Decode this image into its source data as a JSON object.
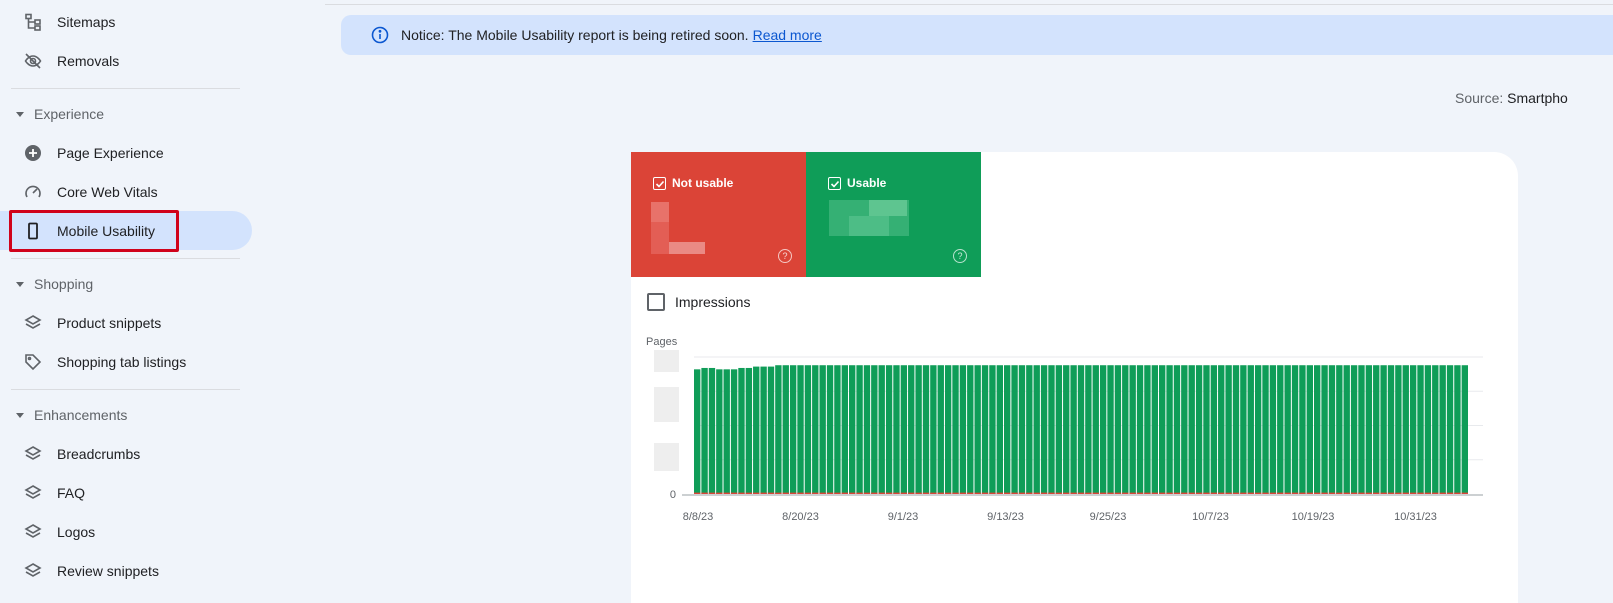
{
  "sidebar": {
    "top_items": [
      {
        "label": "Sitemaps",
        "icon": "sitemap-icon"
      },
      {
        "label": "Removals",
        "icon": "eye-off-icon"
      }
    ],
    "sections": [
      {
        "label": "Experience",
        "items": [
          {
            "label": "Page Experience",
            "icon": "add-circle-icon"
          },
          {
            "label": "Core Web Vitals",
            "icon": "speedometer-icon"
          },
          {
            "label": "Mobile Usability",
            "icon": "smartphone-icon",
            "active": true
          }
        ]
      },
      {
        "label": "Shopping",
        "items": [
          {
            "label": "Product snippets",
            "icon": "layers-icon"
          },
          {
            "label": "Shopping tab listings",
            "icon": "tag-icon"
          }
        ]
      },
      {
        "label": "Enhancements",
        "items": [
          {
            "label": "Breadcrumbs",
            "icon": "layers-icon"
          },
          {
            "label": "FAQ",
            "icon": "layers-icon"
          },
          {
            "label": "Logos",
            "icon": "layers-icon"
          },
          {
            "label": "Review snippets",
            "icon": "layers-icon"
          }
        ]
      }
    ]
  },
  "notice": {
    "text": "Notice: The Mobile Usability report is being retired soon.",
    "link": "Read more"
  },
  "source": {
    "label": "Source:",
    "value": "Smartpho"
  },
  "tiles": {
    "not_usable": {
      "label": "Not usable",
      "help": "?"
    },
    "usable": {
      "label": "Usable",
      "help": "?"
    }
  },
  "impressions_label": "Impressions",
  "colors": {
    "not_usable": "#db4437",
    "usable": "#0f9d58",
    "accent": "#0b57d0"
  },
  "chart_data": {
    "type": "bar",
    "ylabel": "Pages",
    "y_tick_labels": [
      "0"
    ],
    "x_tick_labels": [
      "8/8/23",
      "8/20/23",
      "9/1/23",
      "9/13/23",
      "9/25/23",
      "10/7/23",
      "10/19/23",
      "10/31/23"
    ],
    "series": [
      {
        "name": "Usable",
        "color": "#0f9d58",
        "values": [
          91,
          92,
          92,
          91,
          91,
          91,
          92,
          92,
          93,
          93,
          93,
          94,
          94,
          94,
          94,
          94,
          94,
          94,
          94,
          94,
          94,
          94,
          94,
          94,
          94,
          94,
          94,
          94,
          94,
          94,
          94,
          94,
          94,
          94,
          94,
          94,
          94,
          94,
          94,
          94,
          94,
          94,
          94,
          94,
          94,
          94,
          94,
          94,
          94,
          94,
          94,
          94,
          94,
          94,
          94,
          94,
          94,
          94,
          94,
          94,
          94,
          94,
          94,
          94,
          94,
          94,
          94,
          94,
          94,
          94,
          94,
          94,
          94,
          94,
          94,
          94,
          94,
          94,
          94,
          94,
          94,
          94,
          94,
          94,
          94,
          94,
          94,
          94,
          94,
          94,
          94,
          94,
          94,
          94,
          94,
          94,
          94,
          94,
          94,
          94,
          94,
          94,
          94,
          94,
          94
        ]
      },
      {
        "name": "Not usable",
        "color": "#db4437",
        "values": [
          1,
          1,
          1,
          1,
          1,
          1,
          1,
          1,
          1,
          1,
          1,
          1,
          1,
          1,
          1,
          1,
          1,
          1,
          1,
          1,
          1,
          1,
          1,
          1,
          1,
          1,
          1,
          1,
          1,
          1,
          1,
          1,
          1,
          1,
          1,
          1,
          1,
          1,
          1,
          1,
          1,
          1,
          1,
          1,
          1,
          1,
          1,
          1,
          1,
          1,
          1,
          1,
          1,
          1,
          1,
          1,
          1,
          1,
          1,
          1,
          1,
          1,
          1,
          1,
          1,
          1,
          1,
          1,
          1,
          1,
          1,
          1,
          1,
          1,
          1,
          1,
          1,
          1,
          1,
          1,
          1,
          1,
          1,
          1,
          1,
          1,
          1,
          1,
          1,
          1,
          1,
          1,
          1,
          1,
          1,
          1,
          1,
          1,
          1,
          1,
          1,
          1,
          1,
          1,
          1
        ]
      }
    ],
    "ylim": [
      0,
      100
    ],
    "grid": true
  }
}
